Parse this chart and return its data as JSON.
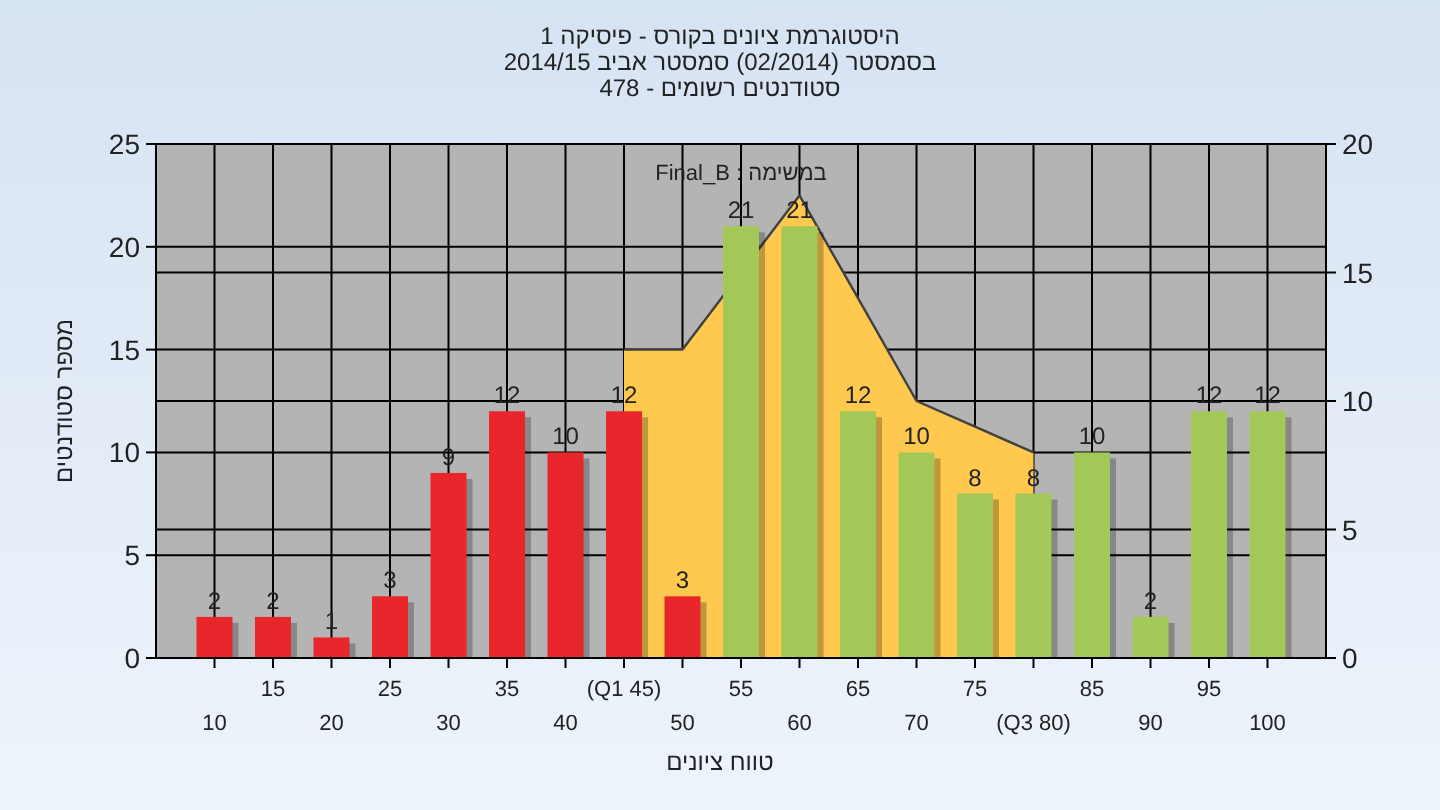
{
  "chart_data": {
    "type": "bar",
    "title": "היסטוגרמת ציונים בקורס - פיסיקה 1",
    "subtitle": "בסמסטר  (02/2014)  סמסטר אביב 2014/15\nסטודנטים רשומים - 478",
    "xlabel": "טווח ציונים",
    "ylabel": "מספר סטודנטים",
    "annotations": [
      "במשימה : Final_B"
    ],
    "categories": [
      "10",
      "15",
      "20",
      "25",
      "30",
      "35",
      "40",
      "(Q1 45)",
      "50",
      "55",
      "60",
      "65",
      "70",
      "75",
      "(Q3 80)",
      "85",
      "90",
      "95",
      "100"
    ],
    "series": [
      {
        "type": "area",
        "axis": "y2",
        "color": "#ffc94f",
        "values": [
          null,
          null,
          null,
          null,
          null,
          null,
          null,
          12,
          12,
          null,
          18,
          14,
          10,
          9,
          8,
          null,
          null,
          null,
          null
        ]
      },
      {
        "colors": [
          "#e8262b",
          "#e8262b",
          "#e8262b",
          "#e8262b",
          "#e8262b",
          "#e8262b",
          "#e8262b",
          "#e8262b",
          "#e8262b",
          "#a4c857",
          "#a4c857",
          "#a4c857",
          "#a4c857",
          "#a4c857",
          "#a4c857",
          "#a4c857",
          "#a4c857",
          "#a4c857",
          "#a4c857"
        ],
        "values": [
          2,
          2,
          1,
          3,
          9,
          12,
          10,
          12,
          3,
          21,
          21,
          12,
          10,
          8,
          8,
          10,
          2,
          12,
          12
        ],
        "value_labels": [
          "2",
          "2",
          "1",
          "3",
          "9",
          "12",
          "10",
          "12",
          "3",
          "21",
          "21",
          "12",
          "10",
          "8",
          "8",
          "10",
          "2",
          "12",
          "12"
        ]
      }
    ],
    "grid": true,
    "ylim": [
      0,
      25
    ],
    "yticks": [
      0,
      5,
      10,
      15,
      20,
      25
    ],
    "y2lim": [
      0,
      20
    ],
    "y2ticks": [
      0,
      5,
      10,
      15,
      20
    ]
  }
}
